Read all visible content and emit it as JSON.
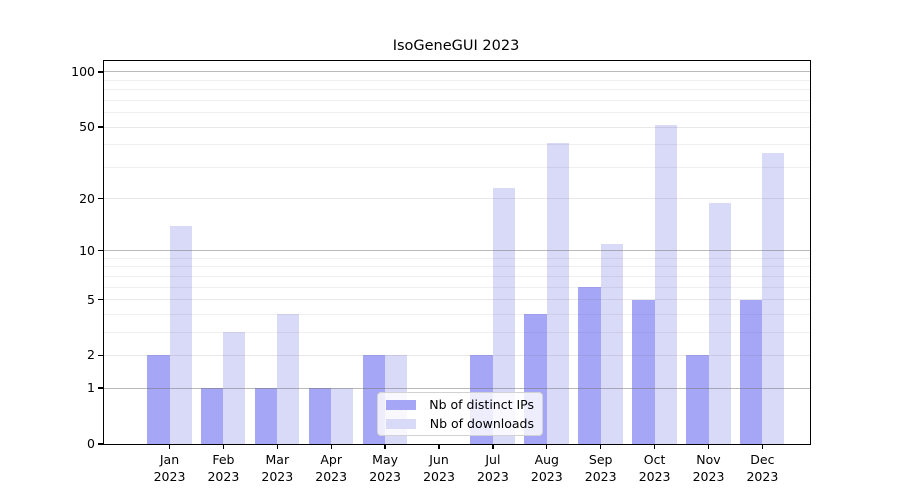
{
  "chart_data": {
    "type": "bar",
    "title": "IsoGeneGUI 2023",
    "categories": [
      "Jan",
      "Feb",
      "Mar",
      "Apr",
      "May",
      "Jun",
      "Jul",
      "Aug",
      "Sep",
      "Oct",
      "Nov",
      "Dec"
    ],
    "category_year": "2023",
    "series": [
      {
        "name": "Nb of distinct IPs",
        "color": "#a6a6f7",
        "values": [
          2,
          1,
          1,
          1,
          2,
          0,
          2,
          4,
          6,
          5,
          2,
          5
        ]
      },
      {
        "name": "Nb of downloads",
        "color": "#d9d9f8",
        "values": [
          14,
          3,
          4,
          1,
          2,
          0,
          23,
          41,
          11,
          51,
          19,
          36
        ]
      }
    ],
    "xlabel": "",
    "ylabel": "",
    "y_scale": "log1p",
    "ylim": [
      0,
      114.7
    ],
    "y_ticks": [
      0,
      1,
      2,
      5,
      10,
      20,
      50,
      100
    ],
    "grid": {
      "on": true,
      "major_lines": [
        1,
        10,
        100
      ],
      "mid_lines": [
        2,
        5,
        20,
        50
      ],
      "minor_lines": [
        3,
        4,
        6,
        7,
        8,
        9,
        30,
        40,
        60,
        70,
        80,
        90
      ]
    },
    "legend": {
      "position": "lower-center",
      "entries": [
        "Nb of distinct IPs",
        "Nb of downloads"
      ]
    }
  },
  "colors": {
    "background": "#ffffff",
    "spine": "#000000",
    "text": "#000000",
    "grid_major": "#bdbdbd",
    "grid_minor": "#ececf0",
    "legend_border": "#d2d2d2",
    "series_dark": "#a6a6f7",
    "series_light": "#d9d9f8"
  }
}
